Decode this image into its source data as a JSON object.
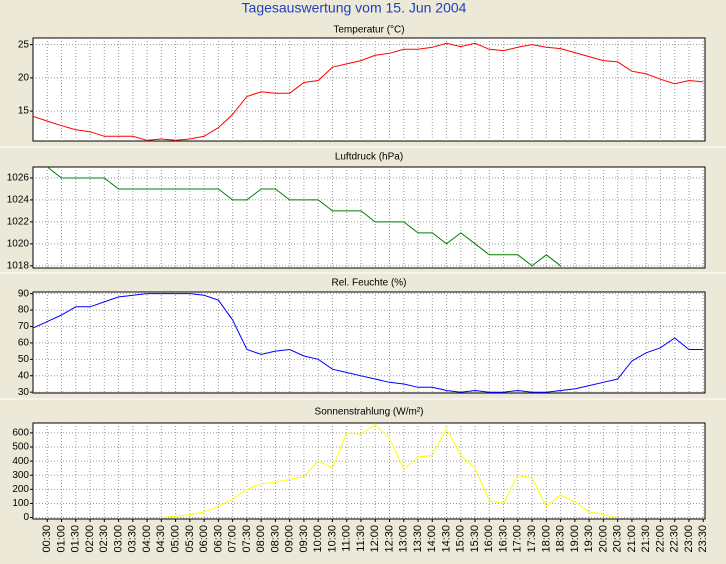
{
  "title": "Tagesauswertung vom 15. Jun 2004",
  "chart_data": [
    {
      "type": "line",
      "title": "Temperatur (°C)",
      "color": "#ff0000",
      "grid": true,
      "ylim": [
        10.5,
        26
      ],
      "yticks": [
        15,
        20,
        25
      ],
      "values": [
        14.2,
        13.5,
        12.8,
        12.2,
        11.9,
        11.2,
        11.2,
        11.2,
        10.6,
        10.8,
        10.6,
        10.8,
        11.2,
        12.5,
        14.5,
        17.2,
        17.9,
        17.7,
        17.7,
        19.3,
        19.6,
        21.6,
        22.1,
        22.6,
        23.4,
        23.7,
        24.3,
        24.3,
        24.6,
        25.2,
        24.7,
        25.2,
        24.3,
        24.1,
        24.6,
        25.0,
        24.6,
        24.4,
        23.8,
        23.2,
        22.6,
        22.4,
        21.0,
        20.6,
        19.8,
        19.1,
        19.6,
        19.4
      ]
    },
    {
      "type": "line",
      "title": "Luftdruck (hPa)",
      "color": "#008000",
      "grid": true,
      "ylim": [
        1017.8,
        1027
      ],
      "yticks": [
        1018,
        1020,
        1022,
        1024,
        1026
      ],
      "values": [
        null,
        1027,
        1026,
        1026,
        1026,
        1026,
        1025,
        1025,
        1025,
        1025,
        1025,
        1025,
        1025,
        1025,
        1024,
        1024,
        1025,
        1025,
        1024,
        1024,
        1024,
        1023,
        1023,
        1023,
        1022,
        1022,
        1022,
        1021,
        1021,
        1020,
        1021,
        1020,
        1019,
        1019,
        1019,
        1018,
        1019,
        1018,
        null,
        null,
        null,
        null,
        null,
        null,
        null,
        null,
        null,
        null
      ]
    },
    {
      "type": "line",
      "title": "Rel. Feuchte (%)",
      "color": "#0000ff",
      "grid": true,
      "ylim": [
        29.5,
        91
      ],
      "yticks": [
        30,
        40,
        50,
        60,
        70,
        80,
        90
      ],
      "values": [
        69,
        73,
        77,
        82,
        82,
        85,
        88,
        89,
        90,
        90,
        90,
        90,
        89,
        86,
        74,
        56,
        53,
        55,
        56,
        52,
        50,
        44,
        42,
        40,
        38,
        36,
        35,
        33,
        33,
        31,
        30,
        31,
        30,
        30,
        31,
        30,
        30,
        31,
        32,
        34,
        36,
        38,
        49,
        54,
        57,
        63,
        56,
        56
      ]
    },
    {
      "type": "line",
      "title": "Sonnenstrahlung (W/m²)",
      "color": "#ffff00",
      "grid": true,
      "ylim": [
        -10,
        670
      ],
      "yticks": [
        0,
        100,
        200,
        300,
        400,
        500,
        600
      ],
      "values": [
        null,
        null,
        null,
        null,
        null,
        null,
        null,
        null,
        null,
        0,
        10,
        20,
        40,
        80,
        130,
        200,
        240,
        250,
        270,
        290,
        400,
        350,
        600,
        590,
        660,
        560,
        340,
        430,
        440,
        630,
        440,
        350,
        120,
        100,
        300,
        280,
        80,
        160,
        110,
        40,
        20,
        0,
        null,
        null,
        null,
        null,
        null,
        null
      ],
      "categories": [
        null,
        "00:30",
        "01:00",
        "01:30",
        "02:00",
        "02:30",
        "03:00",
        "03:30",
        "04:00",
        "04:30",
        "05:00",
        "05:30",
        "06:00",
        "06:30",
        "07:00",
        "07:30",
        "08:00",
        "08:30",
        "09:00",
        "09:30",
        "10:00",
        "10:30",
        "11:00",
        "11:30",
        "12:00",
        "12:30",
        "13:00",
        "13:30",
        "14:00",
        "14:30",
        "15:00",
        "15:30",
        "16:00",
        "16:30",
        "17:00",
        "17:30",
        "18:00",
        "18:30",
        "19:00",
        "19:30",
        "20:00",
        "20:30",
        "21:00",
        "21:30",
        "22:00",
        "22:30",
        "23:00",
        "23:30"
      ]
    }
  ]
}
